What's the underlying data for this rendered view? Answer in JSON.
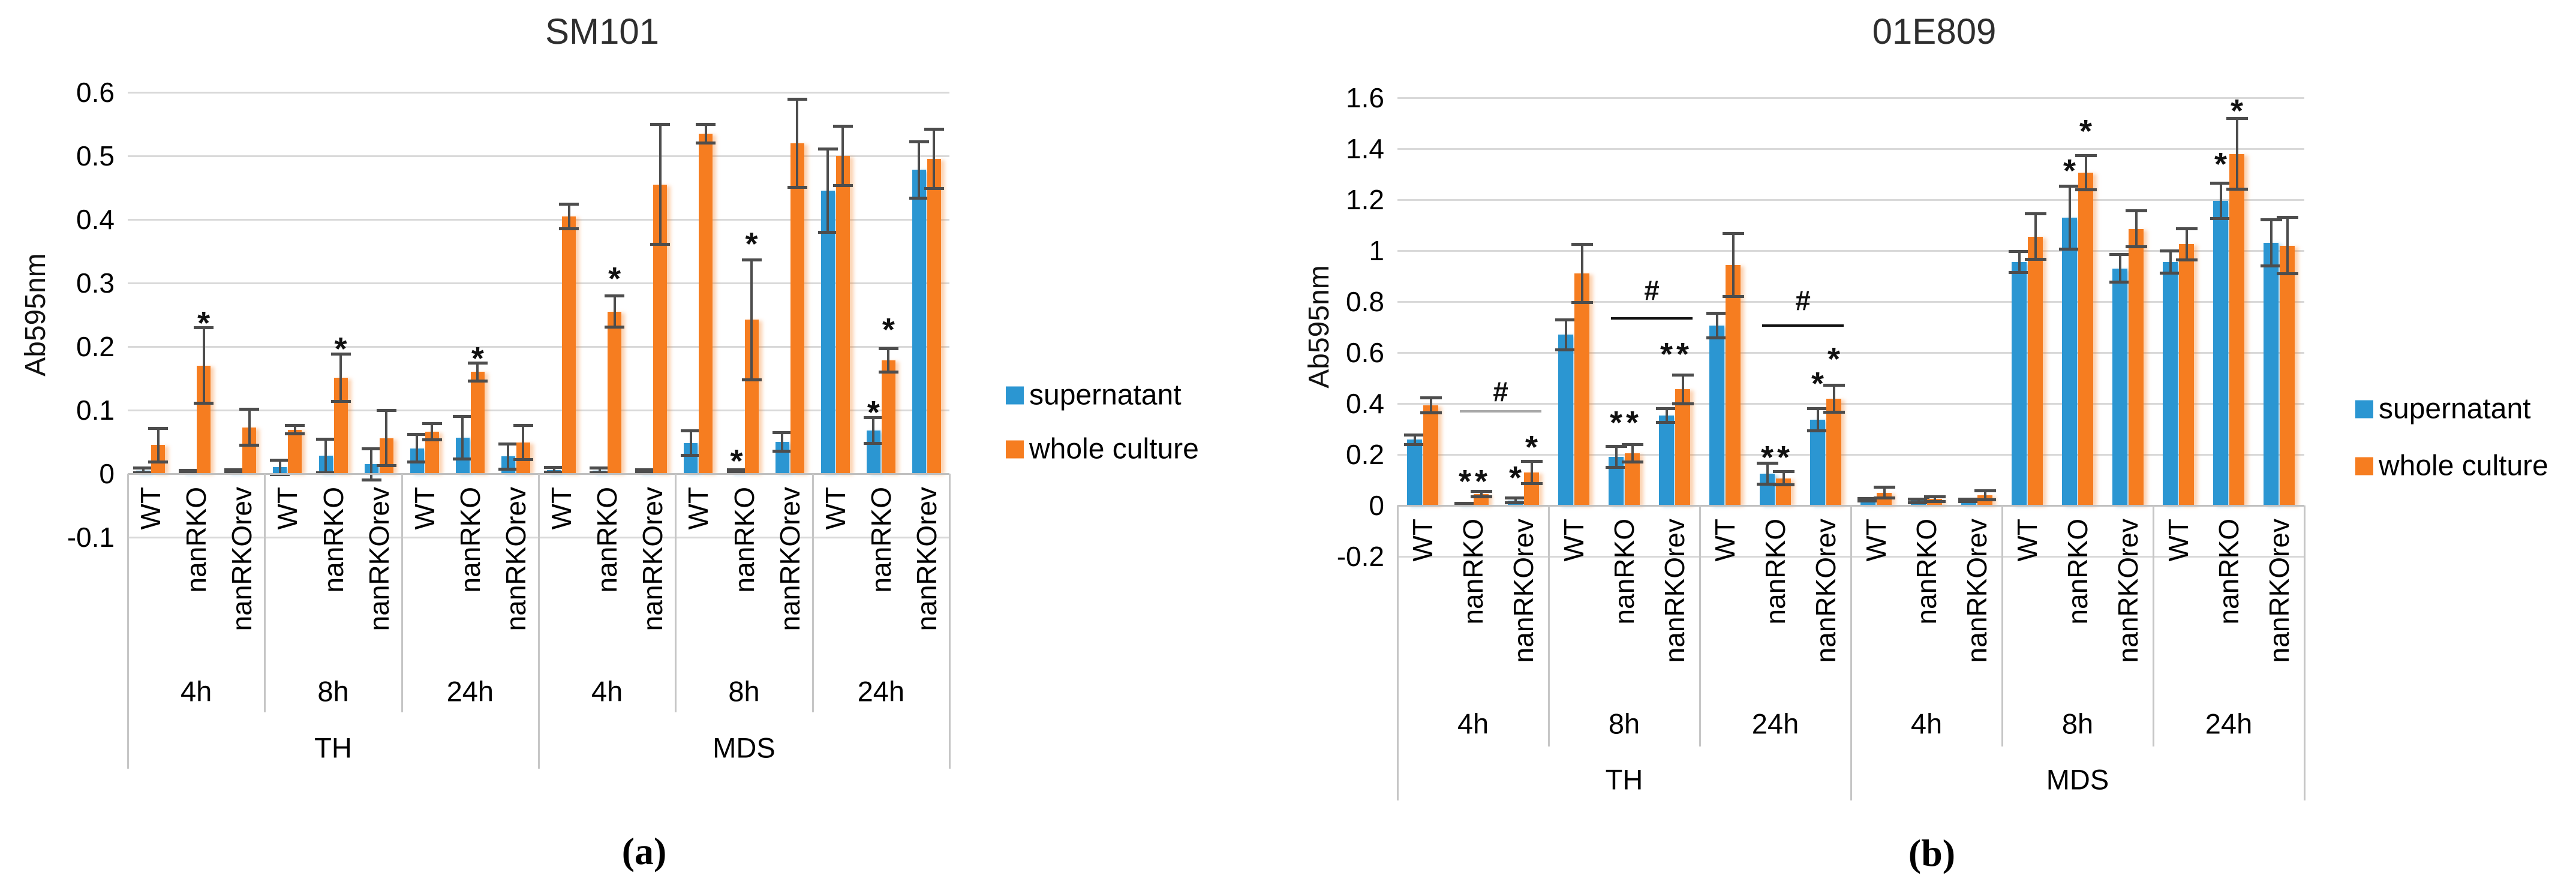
{
  "colors": {
    "supernatant": "#2B96D2",
    "whole_culture": "#F67D20",
    "error_bar": "#4D4D4D",
    "gridline": "#D9D9D9",
    "axis_box": "#C0C0C0"
  },
  "symbols": {
    "star": "*",
    "hash": "#"
  },
  "chart_data": [
    {
      "type": "bar",
      "title": "SM101",
      "ylabel": "Ab595nm",
      "ylim": [
        -0.1,
        0.6
      ],
      "grid": true,
      "legend_position": "right",
      "ytick_values": [
        0.6,
        0.5,
        0.4,
        0.3,
        0.2,
        0.1,
        0,
        -0.1
      ],
      "ytick_labels": [
        "0.6",
        "0.5",
        "0.4",
        "0.3",
        "0.2",
        "0.1",
        "0",
        "-0.1"
      ],
      "genotypes": [
        "WT",
        "nanRKO",
        "nanRKOrev"
      ],
      "group_labels": [
        "4h",
        "8h",
        "24h",
        "4h",
        "8h",
        "24h"
      ],
      "media_labels": [
        "TH",
        "MDS"
      ],
      "series": [
        {
          "name": "supernatant",
          "color": "#2B96D2",
          "values": [
            0.005,
            0.003,
            0.004,
            0.01,
            0.028,
            0.015,
            0.04,
            0.057,
            0.027,
            0.006,
            0.005,
            0.004,
            0.048,
            0.004,
            0.05,
            0.445,
            0.068,
            0.478
          ],
          "errors": [
            0.004,
            0.003,
            0.003,
            0.012,
            0.027,
            0.025,
            0.022,
            0.034,
            0.02,
            0.004,
            0.004,
            0.003,
            0.02,
            0.003,
            0.015,
            0.066,
            0.021,
            0.045
          ]
        },
        {
          "name": "whole culture",
          "color": "#F67D20",
          "values": [
            0.045,
            0.17,
            0.073,
            0.069,
            0.151,
            0.056,
            0.066,
            0.16,
            0.049,
            0.405,
            0.255,
            0.455,
            0.535,
            0.242,
            0.52,
            0.5,
            0.178,
            0.495
          ],
          "errors": [
            0.027,
            0.06,
            0.029,
            0.007,
            0.038,
            0.044,
            0.013,
            0.015,
            0.027,
            0.02,
            0.025,
            0.095,
            0.015,
            0.095,
            0.07,
            0.047,
            0.019,
            0.047
          ]
        }
      ],
      "stars": [
        {
          "cat": 1,
          "series": 1,
          "y": 0.245
        },
        {
          "cat": 4,
          "series": 1,
          "y": 0.205
        },
        {
          "cat": 7,
          "series": 1,
          "y": 0.19
        },
        {
          "cat": 10,
          "series": 1,
          "y": 0.315
        },
        {
          "cat": 13,
          "series": 0,
          "y": 0.028
        },
        {
          "cat": 13,
          "series": 1,
          "y": 0.37
        },
        {
          "cat": 16,
          "series": 0,
          "y": 0.105
        },
        {
          "cat": 16,
          "series": 1,
          "y": 0.235
        }
      ],
      "brackets": [],
      "caption": "(a)"
    },
    {
      "type": "bar",
      "title": "01E809",
      "ylabel": "Ab595nm",
      "ylim": [
        -0.2,
        1.6
      ],
      "grid": true,
      "legend_position": "right",
      "ytick_values": [
        1.6,
        1.4,
        1.2,
        1,
        0.8,
        0.6,
        0.4,
        0.2,
        0,
        -0.2
      ],
      "ytick_labels": [
        "1.6",
        "1.4",
        "1.2",
        "1",
        "0.8",
        "0.6",
        "0.4",
        "0.2",
        "0",
        "-0.2"
      ],
      "genotypes": [
        "WT",
        "nanRKO",
        "nanRKOrev"
      ],
      "group_labels": [
        "4h",
        "8h",
        "24h",
        "4h",
        "8h",
        "24h"
      ],
      "media_labels": [
        "TH",
        "MDS"
      ],
      "series": [
        {
          "name": "supernatant",
          "color": "#2B96D2",
          "values": [
            0.258,
            0.006,
            0.02,
            0.67,
            0.19,
            0.353,
            0.706,
            0.125,
            0.337,
            0.022,
            0.018,
            0.02,
            0.955,
            1.13,
            0.93,
            0.955,
            1.195,
            1.03
          ],
          "errors": [
            0.02,
            0.004,
            0.01,
            0.06,
            0.042,
            0.028,
            0.05,
            0.042,
            0.045,
            0.006,
            0.008,
            0.006,
            0.042,
            0.125,
            0.055,
            0.045,
            0.07,
            0.092
          ]
        },
        {
          "name": "whole culture",
          "color": "#F67D20",
          "values": [
            0.393,
            0.045,
            0.13,
            0.91,
            0.205,
            0.456,
            0.944,
            0.107,
            0.419,
            0.05,
            0.025,
            0.04,
            1.055,
            1.305,
            1.085,
            1.025,
            1.38,
            1.02
          ],
          "errors": [
            0.03,
            0.012,
            0.045,
            0.115,
            0.035,
            0.058,
            0.125,
            0.027,
            0.055,
            0.022,
            0.01,
            0.018,
            0.09,
            0.068,
            0.072,
            0.063,
            0.14,
            0.112
          ]
        }
      ],
      "stars": [
        {
          "cat": 1,
          "series": 0,
          "y": 0.115
        },
        {
          "cat": 1,
          "series": 1,
          "y": 0.115
        },
        {
          "cat": 2,
          "series": 0,
          "y": 0.13
        },
        {
          "cat": 2,
          "series": 1,
          "y": 0.25
        },
        {
          "cat": 4,
          "series": 0,
          "y": 0.345
        },
        {
          "cat": 4,
          "series": 1,
          "y": 0.345
        },
        {
          "cat": 5,
          "series": 0,
          "y": 0.615
        },
        {
          "cat": 5,
          "series": 1,
          "y": 0.615
        },
        {
          "cat": 7,
          "series": 0,
          "y": 0.21
        },
        {
          "cat": 7,
          "series": 1,
          "y": 0.21
        },
        {
          "cat": 8,
          "series": 0,
          "y": 0.5
        },
        {
          "cat": 8,
          "series": 1,
          "y": 0.595
        },
        {
          "cat": 13,
          "series": 0,
          "y": 1.335
        },
        {
          "cat": 13,
          "series": 1,
          "y": 1.49
        },
        {
          "cat": 16,
          "series": 0,
          "y": 1.36
        },
        {
          "cat": 16,
          "series": 1,
          "y": 1.57
        }
      ],
      "brackets": [
        {
          "from": 1,
          "to": 2,
          "y": 0.37,
          "label_y": 0.448,
          "color": "#A8A8A8"
        },
        {
          "from": 4,
          "to": 5,
          "y": 0.735,
          "label_y": 0.845,
          "color": "#111111"
        },
        {
          "from": 7,
          "to": 8,
          "y": 0.705,
          "label_y": 0.805,
          "color": "#111111"
        }
      ],
      "caption": "(b)"
    }
  ]
}
